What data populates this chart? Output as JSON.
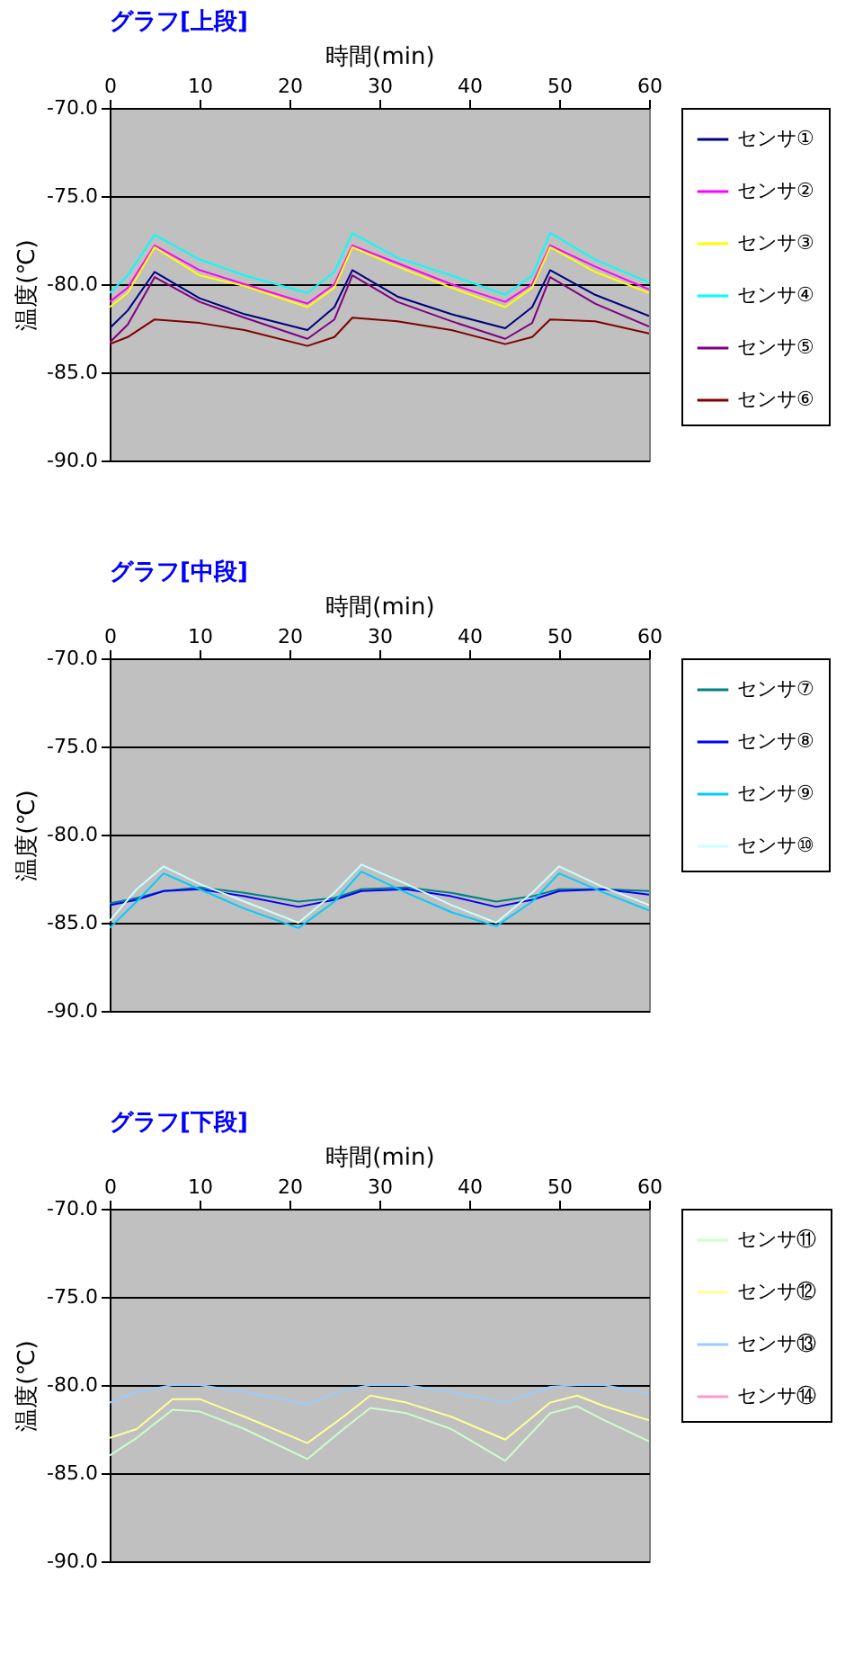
{
  "chart_data": [
    {
      "type": "line",
      "title": "グラフ[上段]",
      "xlabel": "時間(min)",
      "ylabel": "温度(℃)",
      "xlim": [
        0,
        60
      ],
      "xticks": [
        0,
        10,
        20,
        30,
        40,
        50,
        60
      ],
      "ylim": [
        -90,
        -70
      ],
      "yticks": [
        {
          "value": -90,
          "label": "-90.0"
        },
        {
          "value": -85,
          "label": "-85.0"
        },
        {
          "value": -80,
          "label": "-80.0"
        },
        {
          "value": -75,
          "label": "-75.0"
        },
        {
          "value": -70,
          "label": "-70.0"
        }
      ],
      "grid": "y",
      "legend": "right",
      "x": [
        0,
        2,
        5,
        10,
        15,
        22,
        25,
        27,
        32,
        38,
        44,
        47,
        49,
        54,
        60
      ],
      "series": [
        {
          "name": "センサ①",
          "color": "#000080",
          "values": [
            -82.5,
            -81.5,
            -79.3,
            -80.8,
            -81.7,
            -82.6,
            -81.3,
            -79.2,
            -80.7,
            -81.7,
            -82.5,
            -81.3,
            -79.2,
            -80.6,
            -81.8
          ]
        },
        {
          "name": "センサ②",
          "color": "#ff00ff",
          "values": [
            -81,
            -80.2,
            -77.8,
            -79.2,
            -80,
            -81.1,
            -80,
            -77.8,
            -78.8,
            -80,
            -81,
            -80,
            -77.8,
            -79,
            -80.3
          ]
        },
        {
          "name": "センサ③",
          "color": "#ffff00",
          "values": [
            -81.3,
            -80.5,
            -77.9,
            -79.5,
            -80.1,
            -81.3,
            -80.2,
            -77.9,
            -79,
            -80.2,
            -81.3,
            -80.2,
            -77.9,
            -79.3,
            -80.5
          ]
        },
        {
          "name": "センサ④",
          "color": "#00ffff",
          "values": [
            -80.5,
            -79.5,
            -77.2,
            -78.6,
            -79.5,
            -80.5,
            -79.3,
            -77.1,
            -78.5,
            -79.5,
            -80.6,
            -79.5,
            -77.1,
            -78.6,
            -79.9
          ]
        },
        {
          "name": "センサ⑤",
          "color": "#800080",
          "values": [
            -83.3,
            -82.3,
            -79.6,
            -81,
            -81.9,
            -83.1,
            -82,
            -79.5,
            -81,
            -82.1,
            -83.1,
            -82.2,
            -79.6,
            -81.1,
            -82.4
          ]
        },
        {
          "name": "センサ⑥",
          "color": "#800000",
          "values": [
            -83.4,
            -83,
            -82,
            -82.2,
            -82.6,
            -83.5,
            -83,
            -81.9,
            -82.1,
            -82.6,
            -83.4,
            -83,
            -82,
            -82.1,
            -82.8
          ]
        }
      ]
    },
    {
      "type": "line",
      "title": "グラフ[中段]",
      "xlabel": "時間(min)",
      "ylabel": "温度(℃)",
      "xlim": [
        0,
        60
      ],
      "xticks": [
        0,
        10,
        20,
        30,
        40,
        50,
        60
      ],
      "ylim": [
        -90,
        -70
      ],
      "yticks": [
        {
          "value": -90,
          "label": "-90.0"
        },
        {
          "value": -85,
          "label": "-85.0"
        },
        {
          "value": -80,
          "label": "-80.0"
        },
        {
          "value": -75,
          "label": "-75.0"
        },
        {
          "value": -70,
          "label": "-70.0"
        }
      ],
      "grid": "y",
      "legend": "right",
      "x": [
        0,
        3,
        6,
        10,
        15,
        21,
        25,
        28,
        33,
        38,
        43,
        47,
        50,
        55,
        60
      ],
      "series": [
        {
          "name": "センサ⑦",
          "color": "#008080",
          "values": [
            -83.9,
            -83.6,
            -83.2,
            -83,
            -83.3,
            -83.8,
            -83.6,
            -83.1,
            -83,
            -83.3,
            -83.8,
            -83.5,
            -83.1,
            -83.1,
            -83.2
          ]
        },
        {
          "name": "センサ⑧",
          "color": "#0000ff",
          "values": [
            -84,
            -83.7,
            -83.2,
            -83.1,
            -83.5,
            -84.1,
            -83.7,
            -83.2,
            -83.1,
            -83.5,
            -84.1,
            -83.7,
            -83.2,
            -83.1,
            -83.4
          ]
        },
        {
          "name": "センサ⑨",
          "color": "#00ccff",
          "values": [
            -85.3,
            -83.8,
            -82.2,
            -83.1,
            -84.2,
            -85.3,
            -83.8,
            -82.1,
            -83.3,
            -84.4,
            -85.2,
            -83.8,
            -82.2,
            -83.3,
            -84.3
          ]
        },
        {
          "name": "センサ⑩",
          "color": "#ccffff",
          "values": [
            -84.9,
            -83.1,
            -81.8,
            -82.8,
            -83.8,
            -85,
            -83.3,
            -81.7,
            -82.8,
            -84,
            -85,
            -83.3,
            -81.8,
            -83,
            -84
          ]
        }
      ]
    },
    {
      "type": "line",
      "title": "グラフ[下段]",
      "xlabel": "時間(min)",
      "ylabel": "温度(℃)",
      "xlim": [
        0,
        60
      ],
      "xticks": [
        0,
        10,
        20,
        30,
        40,
        50,
        60
      ],
      "ylim": [
        -90,
        -70
      ],
      "yticks": [
        {
          "value": -90,
          "label": "-90.0"
        },
        {
          "value": -85,
          "label": "-85.0"
        },
        {
          "value": -80,
          "label": "-80.0"
        },
        {
          "value": -75,
          "label": "-75.0"
        },
        {
          "value": -70,
          "label": "-70.0"
        }
      ],
      "grid": "y",
      "legend": "right",
      "x": [
        0,
        3,
        7,
        10,
        15,
        22,
        26,
        29,
        33,
        38,
        44,
        49,
        52,
        55,
        60
      ],
      "series": [
        {
          "name": "センサ⑪",
          "color": "#ccffcc",
          "values": [
            -84,
            -83,
            -81.4,
            -81.5,
            -82.5,
            -84.2,
            -82.5,
            -81.3,
            -81.6,
            -82.5,
            -84.3,
            -81.6,
            -81.2,
            -82,
            -83.2
          ]
        },
        {
          "name": "センサ⑫",
          "color": "#ffff99",
          "values": [
            -83,
            -82.5,
            -80.8,
            -80.8,
            -81.8,
            -83.3,
            -81.8,
            -80.6,
            -81,
            -81.8,
            -83.1,
            -81,
            -80.6,
            -81.2,
            -82
          ]
        },
        {
          "name": "センサ⑬",
          "color": "#99ccff",
          "values": [
            -81,
            -80.4,
            -80,
            -80,
            -80.4,
            -81.1,
            -80.3,
            -80,
            -80,
            -80.4,
            -81,
            -80.1,
            -80,
            -80,
            -80.5
          ]
        },
        {
          "name": "センサ⑭",
          "color": "#ff99cc",
          "values": [
            null,
            null,
            null,
            null,
            null,
            null,
            null,
            null,
            null,
            null,
            null,
            null,
            null,
            null,
            null
          ]
        }
      ]
    }
  ]
}
